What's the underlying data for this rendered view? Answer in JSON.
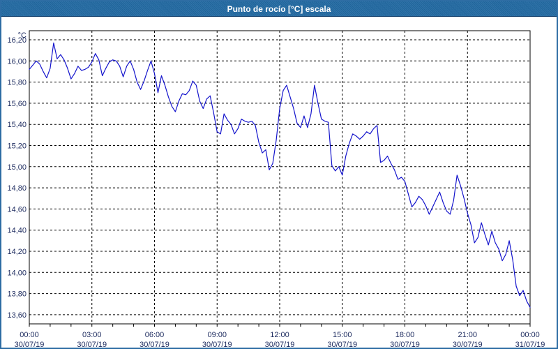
{
  "window": {
    "title": "Punto de rocío [°C] escala"
  },
  "colors": {
    "title_bar": "#2169a2",
    "title_text": "#ffffff",
    "frame": "#2e6da4",
    "background": "#ffffff",
    "line": "#1414cc",
    "grid": "#000000",
    "plot_border": "#000000",
    "axis_text": "#1c2a5e"
  },
  "chart_data": {
    "type": "line",
    "title": "Punto de rocío [°C] escala",
    "unit_label": "°C",
    "grid": true,
    "legend": "none",
    "decimal_separator": ",",
    "ylim": [
      13.51,
      16.29
    ],
    "y_tick_step": 0.2,
    "y_ticks": [
      16.2,
      16.0,
      15.8,
      15.6,
      15.4,
      15.2,
      15.0,
      14.8,
      14.6,
      14.4,
      14.2,
      14.0,
      13.8,
      13.6
    ],
    "x_hours_range": [
      0,
      24
    ],
    "x_tick_step_hours": 3,
    "x_minor_tick_step_hours": 1,
    "x_ticks": [
      {
        "time": "00:00",
        "date": "30/07/19"
      },
      {
        "time": "03:00",
        "date": "30/07/19"
      },
      {
        "time": "06:00",
        "date": "30/07/19"
      },
      {
        "time": "09:00",
        "date": "30/07/19"
      },
      {
        "time": "12:00",
        "date": "30/07/19"
      },
      {
        "time": "15:00",
        "date": "30/07/19"
      },
      {
        "time": "18:00",
        "date": "30/07/19"
      },
      {
        "time": "21:00",
        "date": "30/07/19"
      },
      {
        "time": "00:00",
        "date": "31/07/19"
      }
    ],
    "series": [
      {
        "name": "Punto de rocío",
        "start": "30/07/19 00:00",
        "interval_minutes": 10,
        "values": [
          15.92,
          15.96,
          16.0,
          15.97,
          15.9,
          15.84,
          15.93,
          16.17,
          16.02,
          16.06,
          16.01,
          15.93,
          15.83,
          15.88,
          15.95,
          15.91,
          15.92,
          15.94,
          15.99,
          16.07,
          16.01,
          15.86,
          15.93,
          15.99,
          16.01,
          16.0,
          15.95,
          15.85,
          15.95,
          16.0,
          15.92,
          15.8,
          15.73,
          15.81,
          15.91,
          16.0,
          15.88,
          15.7,
          15.86,
          15.77,
          15.66,
          15.57,
          15.52,
          15.62,
          15.69,
          15.68,
          15.72,
          15.81,
          15.77,
          15.62,
          15.55,
          15.64,
          15.67,
          15.51,
          15.33,
          15.31,
          15.5,
          15.44,
          15.4,
          15.31,
          15.36,
          15.45,
          15.43,
          15.42,
          15.43,
          15.39,
          15.23,
          15.13,
          15.16,
          14.97,
          15.03,
          15.25,
          15.55,
          15.72,
          15.77,
          15.66,
          15.55,
          15.41,
          15.37,
          15.48,
          15.37,
          15.5,
          15.77,
          15.6,
          15.45,
          15.43,
          15.42,
          15.01,
          14.96,
          15.0,
          14.92,
          15.1,
          15.22,
          15.31,
          15.29,
          15.26,
          15.29,
          15.33,
          15.31,
          15.36,
          15.39,
          15.04,
          15.06,
          15.1,
          15.03,
          14.97,
          14.88,
          14.9,
          14.86,
          14.74,
          14.62,
          14.66,
          14.72,
          14.69,
          14.63,
          14.55,
          14.62,
          14.69,
          14.76,
          14.66,
          14.58,
          14.55,
          14.68,
          14.92,
          14.82,
          14.7,
          14.56,
          14.45,
          14.28,
          14.33,
          14.47,
          14.36,
          14.26,
          14.39,
          14.28,
          14.22,
          14.11,
          14.17,
          14.3,
          14.12,
          13.87,
          13.78,
          13.83,
          13.73,
          13.67
        ]
      }
    ]
  }
}
